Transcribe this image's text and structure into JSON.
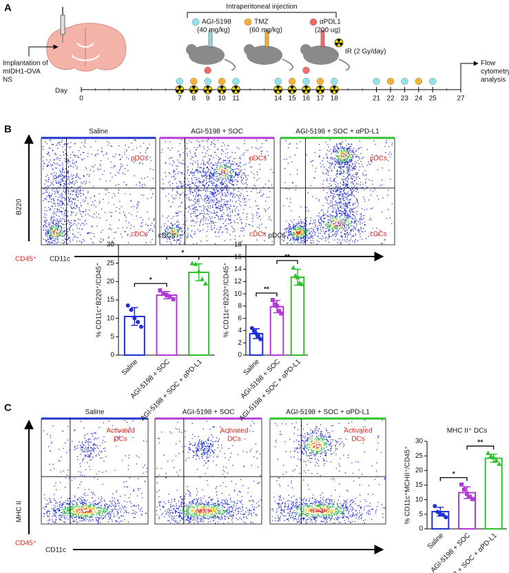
{
  "panels": {
    "a": "A",
    "b": "B",
    "c": "C"
  },
  "timeline": {
    "injection_title": "Intraperitoneal injection",
    "legend": [
      {
        "name": "AGI-5198",
        "dose": "(40 mg/kg)",
        "color": "#92e3ef"
      },
      {
        "name": "TMZ",
        "dose": "(60 mg/kg)",
        "color": "#f6b233"
      },
      {
        "name": "αPDL1",
        "dose": "(200 ug)",
        "color": "#f06a6a"
      }
    ],
    "ir": "IR (2 Gy/day)",
    "implantation": [
      "Implantation of",
      "mIDH1-OVA",
      "NS"
    ],
    "day_label": "Day",
    "days": [
      0,
      7,
      8,
      9,
      10,
      11,
      14,
      15,
      16,
      17,
      18,
      21,
      22,
      23,
      24,
      25,
      27
    ],
    "agi_days": [
      7,
      9,
      11,
      14,
      16,
      18,
      21,
      23,
      25
    ],
    "tmz_days": [
      8,
      10,
      15,
      17,
      22,
      24
    ],
    "pdl1_days": [
      9,
      16
    ],
    "ir_days": [
      7,
      8,
      9,
      10,
      11,
      14,
      15,
      16,
      17,
      18
    ],
    "endpoint": [
      "Flow",
      "cytometry",
      "analysis"
    ]
  },
  "flow_b": {
    "titles": [
      "Saline",
      "AGI-5198 + SOC",
      "AGI-5198 + SOC + αPD-L1"
    ],
    "colors": [
      "#2233cc",
      "#b23bd6",
      "#2cc22c"
    ],
    "upper": "pDCs",
    "lower": "cDCs",
    "y_label": "B220",
    "x_label": "CD11c",
    "gate": "CD45⁺"
  },
  "flow_c": {
    "titles": [
      "Saline",
      "AGI-5198 + SOC",
      "AGI-5198 + SOC + αPD-L1"
    ],
    "colors": [
      "#2233cc",
      "#b23bd6",
      "#2cc22c"
    ],
    "gated": [
      "Activated",
      "DCs"
    ],
    "y_label": "MHC II",
    "x_label": "CD11c",
    "gate": "CD45⁺"
  },
  "chart_data": [
    {
      "type": "bar",
      "title": "cDCs",
      "y_label": "% CD11c⁺B220⁺/CD45⁺",
      "categories": [
        "Saline",
        "AGI-5198 + SOC",
        "AGI-5198 + SOC + αPD-L1"
      ],
      "colors": [
        "#1f2fd6",
        "#b23bd6",
        "#2cc22c"
      ],
      "values": [
        10.5,
        16.3,
        22.5
      ],
      "errors": [
        2.4,
        1.0,
        2.3
      ],
      "points": [
        [
          13.5,
          12.3,
          10,
          9,
          7.7
        ],
        [
          17.6,
          16.7,
          16.3,
          15.9,
          15.2
        ],
        [
          25,
          24.8,
          22.8,
          20.7,
          19.5
        ]
      ],
      "ylim": [
        0,
        30
      ],
      "yticks": [
        0,
        5,
        10,
        15,
        20,
        25,
        30
      ],
      "significance": [
        "*",
        "*"
      ]
    },
    {
      "type": "bar",
      "title": "pDCs",
      "y_label": "% CD11c⁺B220⁺/CD45⁺",
      "categories": [
        "Saline",
        "AGI-5198 + SOC",
        "AGI-5198 + SOC + αPD-L1"
      ],
      "colors": [
        "#1f2fd6",
        "#b23bd6",
        "#2cc22c"
      ],
      "values": [
        3.5,
        7.9,
        12.7
      ],
      "errors": [
        0.8,
        1.0,
        1.3
      ],
      "points": [
        [
          4.4,
          3.9,
          3.5,
          3.1,
          2.6
        ],
        [
          9,
          8.3,
          8,
          7.2,
          6.8
        ],
        [
          14.3,
          13,
          12.7,
          11.8,
          11.6
        ]
      ],
      "ylim": [
        0,
        18
      ],
      "yticks": [
        0,
        2,
        4,
        6,
        8,
        10,
        12,
        14,
        16,
        18
      ],
      "significance": [
        "**",
        "**"
      ]
    },
    {
      "type": "bar",
      "title": "MHC II⁺ DCs",
      "y_label": "% CD11c⁺MCHII⁺/CD45⁺",
      "categories": [
        "Saline",
        "AGI-5198 + SOC",
        "AGI-5198 + SOC + αPD-L1"
      ],
      "colors": [
        "#1f2fd6",
        "#b23bd6",
        "#2cc22c"
      ],
      "values": [
        5.9,
        12.4,
        24.2
      ],
      "errors": [
        1.5,
        2.0,
        1.4
      ],
      "points": [
        [
          7.8,
          5.8,
          5,
          4.8,
          4
        ],
        [
          15.2,
          13.5,
          12,
          11,
          10.2
        ],
        [
          26,
          25,
          24.5,
          23.5,
          22.3
        ]
      ],
      "ylim": [
        0,
        30
      ],
      "yticks": [
        0,
        5,
        10,
        15,
        20,
        25,
        30
      ],
      "significance": [
        "*",
        "**"
      ]
    }
  ]
}
